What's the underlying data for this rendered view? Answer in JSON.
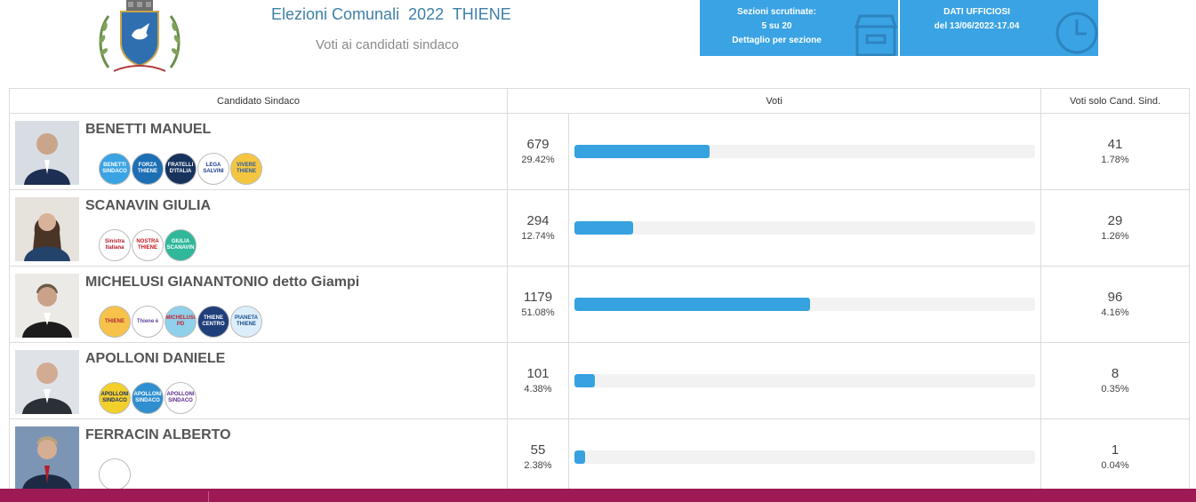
{
  "header": {
    "title": "Elezioni Comunali  2022  THIENE",
    "subtitle": "Voti ai candidati sindaco",
    "sezioni": {
      "line1": "Sezioni scrutinate:",
      "line2": "5 su 20",
      "line3": "Dettaglio per sezione",
      "icon": "archive-box-icon"
    },
    "dati": {
      "line1": "DATI UFFICIOSI",
      "line2": "del 13/06/2022-17.04",
      "icon": "clock-icon"
    },
    "accent_color": "#3aa3e3"
  },
  "table": {
    "headers": {
      "candidate": "Candidato Sindaco",
      "votes": "Voti",
      "solo": "Voti solo Cand. Sind."
    },
    "rows": [
      {
        "name": "BENETTI MANUEL",
        "votes": "679",
        "pct": "29.42%",
        "share": 0.2942,
        "solo_votes": "41",
        "solo_pct": "1.78%",
        "logos": [
          {
            "text": "BENETTI SINDACO",
            "bg": "#3aa3e3",
            "fg": "#ffffff"
          },
          {
            "text": "FORZA THIENE",
            "bg": "#1c6fb5",
            "fg": "#ffffff"
          },
          {
            "text": "FRATELLI D'ITALIA",
            "bg": "#16335e",
            "fg": "#ffffff"
          },
          {
            "text": "LEGA SALVINI",
            "bg": "#ffffff",
            "fg": "#1b3c8f"
          },
          {
            "text": "VIVERE THIENE",
            "bg": "#f4c63f",
            "fg": "#2b5aa8"
          }
        ]
      },
      {
        "name": "SCANAVIN GIULIA",
        "votes": "294",
        "pct": "12.74%",
        "share": 0.1274,
        "solo_votes": "29",
        "solo_pct": "1.26%",
        "logos": [
          {
            "text": "Sinistra Italiana",
            "bg": "#ffffff",
            "fg": "#b5172b"
          },
          {
            "text": "NOSTRA THIENE",
            "bg": "#ffffff",
            "fg": "#c2161d"
          },
          {
            "text": "GIULIA SCANAVIN",
            "bg": "#2fb89a",
            "fg": "#ffffff"
          }
        ]
      },
      {
        "name": "MICHELUSI GIANANTONIO detto Giampi",
        "votes": "1179",
        "pct": "51.08%",
        "share": 0.5108,
        "solo_votes": "96",
        "solo_pct": "4.16%",
        "logos": [
          {
            "text": "THIENE",
            "bg": "#f6c24a",
            "fg": "#b2283a"
          },
          {
            "text": "Thiene è",
            "bg": "#ffffff",
            "fg": "#5a3fa0"
          },
          {
            "text": "MICHELUSI PD",
            "bg": "#8fd0ea",
            "fg": "#c8202e"
          },
          {
            "text": "THIENE CENTRO",
            "bg": "#1f3e7a",
            "fg": "#ffffff"
          },
          {
            "text": "PIANETA THIENE",
            "bg": "#dceefa",
            "fg": "#1a4e8a"
          }
        ]
      },
      {
        "name": "APOLLONI DANIELE",
        "votes": "101",
        "pct": "4.38%",
        "share": 0.0438,
        "solo_votes": "8",
        "solo_pct": "0.35%",
        "logos": [
          {
            "text": "APOLLONI SINDACO",
            "bg": "#f2cf2b",
            "fg": "#1a2a6b"
          },
          {
            "text": "APOLLONI SINDACO",
            "bg": "#2f8fd0",
            "fg": "#ffffff"
          },
          {
            "text": "APOLLONI SINDACO",
            "bg": "#ffffff",
            "fg": "#5a2a8c"
          }
        ]
      },
      {
        "name": "FERRACIN ALBERTO",
        "votes": "55",
        "pct": "2.38%",
        "share": 0.0238,
        "solo_votes": "1",
        "solo_pct": "0.04%",
        "logos": [
          {
            "text": "",
            "bg": "#ffffff",
            "fg": "#3a4a8c"
          }
        ]
      }
    ]
  },
  "footer": {
    "color": "#9e1a54"
  }
}
